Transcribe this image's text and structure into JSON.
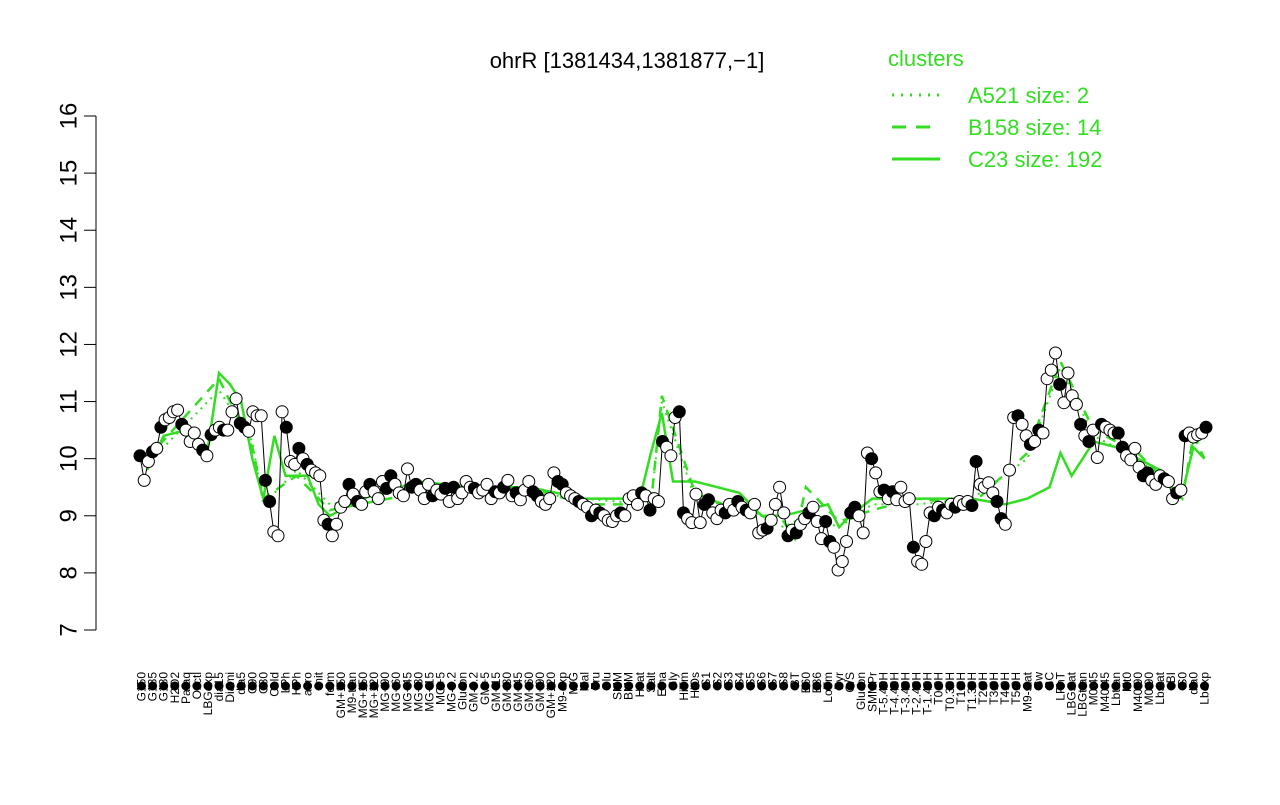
{
  "chart_data": {
    "type": "line",
    "title": "ohrR [1381434,1381877,−1]",
    "xlabel": "",
    "ylabel": "",
    "ylim": [
      7,
      16
    ],
    "yticks": [
      7,
      8,
      9,
      10,
      11,
      12,
      13,
      14,
      15,
      16
    ],
    "grid": false,
    "legend": {
      "title": "clusters",
      "position": "top-right",
      "entries": [
        {
          "label": "A521 size: 2",
          "style": "dotted"
        },
        {
          "label": "B158 size: 14",
          "style": "dashed"
        },
        {
          "label": "C23 size: 192",
          "style": "solid"
        }
      ]
    },
    "colors": {
      "cluster": "#33dd22",
      "points": "#000000",
      "axis": "#000000"
    },
    "x_labels": [
      "G150",
      "G135",
      "G180",
      "H2O2",
      "Paraq",
      "Oxctl",
      "LBGexp",
      "dia15",
      "Diami",
      "dia5",
      "C90",
      "C30",
      "Cold",
      "LPh",
      "HPh",
      "aero",
      "nit",
      "ferm",
      "GM+150",
      "M9-tran",
      "MG+150",
      "MG+120",
      "MG+90",
      "MG+60",
      "MG+45",
      "MG+30",
      "MG+15",
      "MG+5",
      "MG-0.2",
      "Glucon",
      "GM-0.2",
      "GM+5",
      "GM+15",
      "GM+30",
      "GM+45",
      "GM+60",
      "GM+90",
      "GM+120",
      "M9-exp",
      "M/G",
      "Mal",
      "Fru",
      "Glu",
      "SMM",
      "BMM",
      "Heat",
      "Salt",
      "Etha",
      "Gly",
      "HiTm",
      "HiOs",
      "S1",
      "S2",
      "S3",
      "S4",
      "S5",
      "S6",
      "S7",
      "S8",
      "BT",
      "B60",
      "B36",
      "LoTm",
      "Pyr",
      "G/S",
      "Glucon",
      "SMMPr",
      "T-5.40H",
      "T-4.40H",
      "T-3.40H",
      "T-2.40H",
      "T-1.40H",
      "T0.0H",
      "T0.30H",
      "T1.0H",
      "T1.30H",
      "T2.0H",
      "T3.0H",
      "T4.0H",
      "T5.0H",
      "M9-stat",
      "Sw",
      "BC",
      "LPhT",
      "LBGstat",
      "LBGtran",
      "M0t45",
      "M40t45",
      "Lbtran",
      "Mt0",
      "M40t90",
      "M0t90",
      "Lbstat",
      "BI",
      "S0",
      "dia0",
      "Lbexp"
    ],
    "cluster_lines": {
      "A521": [
        {
          "x": 0.5,
          "y": 9.9
        },
        {
          "x": 7,
          "y": 11.2
        },
        {
          "x": 10,
          "y": 10.3
        },
        {
          "x": 11,
          "y": 9.2
        },
        {
          "x": 14,
          "y": 9.8
        },
        {
          "x": 17,
          "y": 9.2
        },
        {
          "x": 25,
          "y": 9.5
        },
        {
          "x": 30,
          "y": 9.4
        },
        {
          "x": 35,
          "y": 9.4
        },
        {
          "x": 40,
          "y": 9.3
        },
        {
          "x": 46,
          "y": 9.2
        },
        {
          "x": 47,
          "y": 11.0
        },
        {
          "x": 50,
          "y": 9.3
        },
        {
          "x": 55,
          "y": 9.1
        },
        {
          "x": 58,
          "y": 8.8
        },
        {
          "x": 60,
          "y": 9.0
        },
        {
          "x": 63,
          "y": 8.8
        },
        {
          "x": 66,
          "y": 9.2
        },
        {
          "x": 70,
          "y": 9.2
        },
        {
          "x": 75,
          "y": 9.3
        },
        {
          "x": 80,
          "y": 10.0
        },
        {
          "x": 83,
          "y": 11.6
        },
        {
          "x": 86,
          "y": 10.4
        },
        {
          "x": 90,
          "y": 10.0
        },
        {
          "x": 93,
          "y": 9.5
        },
        {
          "x": 94,
          "y": 9.3
        },
        {
          "x": 95,
          "y": 10.3
        },
        {
          "x": 96,
          "y": 10.3
        }
      ],
      "B158": [
        {
          "x": 0.5,
          "y": 10.0
        },
        {
          "x": 7,
          "y": 11.4
        },
        {
          "x": 10,
          "y": 10.2
        },
        {
          "x": 11,
          "y": 9.3
        },
        {
          "x": 14,
          "y": 9.7
        },
        {
          "x": 17,
          "y": 9.1
        },
        {
          "x": 25,
          "y": 9.4
        },
        {
          "x": 30,
          "y": 9.5
        },
        {
          "x": 35,
          "y": 9.5
        },
        {
          "x": 40,
          "y": 9.2
        },
        {
          "x": 46,
          "y": 9.2
        },
        {
          "x": 47,
          "y": 11.1
        },
        {
          "x": 50,
          "y": 9.4
        },
        {
          "x": 55,
          "y": 9.0
        },
        {
          "x": 58,
          "y": 8.9
        },
        {
          "x": 59,
          "y": 8.6
        },
        {
          "x": 60,
          "y": 9.5
        },
        {
          "x": 63,
          "y": 8.9
        },
        {
          "x": 66,
          "y": 9.1
        },
        {
          "x": 70,
          "y": 9.3
        },
        {
          "x": 75,
          "y": 9.2
        },
        {
          "x": 80,
          "y": 10.1
        },
        {
          "x": 83,
          "y": 11.7
        },
        {
          "x": 86,
          "y": 10.5
        },
        {
          "x": 90,
          "y": 10.1
        },
        {
          "x": 93,
          "y": 9.5
        },
        {
          "x": 94,
          "y": 9.3
        },
        {
          "x": 95,
          "y": 10.4
        },
        {
          "x": 96,
          "y": 10.0
        }
      ],
      "C23": [
        {
          "x": 0.5,
          "y": 9.8
        },
        {
          "x": 2,
          "y": 10.4
        },
        {
          "x": 4,
          "y": 10.5
        },
        {
          "x": 6,
          "y": 10.2
        },
        {
          "x": 7,
          "y": 11.5
        },
        {
          "x": 8,
          "y": 11.3
        },
        {
          "x": 9,
          "y": 11.0
        },
        {
          "x": 10,
          "y": 10.0
        },
        {
          "x": 11,
          "y": 9.3
        },
        {
          "x": 12,
          "y": 10.4
        },
        {
          "x": 13,
          "y": 9.7
        },
        {
          "x": 15,
          "y": 9.7
        },
        {
          "x": 16,
          "y": 9.2
        },
        {
          "x": 17,
          "y": 9.0
        },
        {
          "x": 20,
          "y": 9.3
        },
        {
          "x": 25,
          "y": 9.6
        },
        {
          "x": 30,
          "y": 9.5
        },
        {
          "x": 35,
          "y": 9.5
        },
        {
          "x": 40,
          "y": 9.3
        },
        {
          "x": 45,
          "y": 9.3
        },
        {
          "x": 46,
          "y": 10.1
        },
        {
          "x": 47,
          "y": 10.8
        },
        {
          "x": 48,
          "y": 9.6
        },
        {
          "x": 50,
          "y": 9.6
        },
        {
          "x": 52,
          "y": 9.5
        },
        {
          "x": 54,
          "y": 9.4
        },
        {
          "x": 56,
          "y": 9.0
        },
        {
          "x": 58,
          "y": 9.0
        },
        {
          "x": 60,
          "y": 9.1
        },
        {
          "x": 62,
          "y": 9.2
        },
        {
          "x": 63,
          "y": 8.8
        },
        {
          "x": 64,
          "y": 9.0
        },
        {
          "x": 66,
          "y": 9.3
        },
        {
          "x": 70,
          "y": 9.3
        },
        {
          "x": 75,
          "y": 9.3
        },
        {
          "x": 78,
          "y": 9.2
        },
        {
          "x": 80,
          "y": 9.3
        },
        {
          "x": 82,
          "y": 9.5
        },
        {
          "x": 83,
          "y": 10.1
        },
        {
          "x": 84,
          "y": 9.7
        },
        {
          "x": 86,
          "y": 10.3
        },
        {
          "x": 88,
          "y": 10.2
        },
        {
          "x": 90,
          "y": 10.0
        },
        {
          "x": 92,
          "y": 9.8
        },
        {
          "x": 93,
          "y": 9.5
        },
        {
          "x": 94,
          "y": 9.4
        },
        {
          "x": 95,
          "y": 10.2
        },
        {
          "x": 96,
          "y": 10.0
        }
      ]
    },
    "series": [
      {
        "values": [
          10.05,
          9.62,
          9.95,
          10.12,
          10.18,
          10.55,
          10.68,
          10.72,
          10.82,
          10.85,
          10.6,
          10.5,
          10.3,
          10.45,
          10.25,
          10.15,
          10.05,
          10.42,
          10.5,
          10.55,
          10.5,
          10.5,
          10.82,
          11.05,
          10.62,
          10.55,
          10.48,
          10.82,
          10.75,
          10.75,
          9.62,
          9.25,
          8.72,
          8.65,
          10.82,
          10.55,
          9.95,
          9.9,
          10.18,
          10.0,
          9.9,
          9.8,
          9.75,
          9.7,
          8.92,
          8.85,
          8.65,
          8.85,
          9.15,
          9.25,
          9.55,
          9.38,
          9.25,
          9.2,
          9.42,
          9.55,
          9.42,
          9.3,
          9.6,
          9.48,
          9.7,
          9.55,
          9.4,
          9.35,
          9.82,
          9.5,
          9.55,
          9.45,
          9.3,
          9.55,
          9.35,
          9.45,
          9.38,
          9.48,
          9.25,
          9.5,
          9.3,
          9.4,
          9.6,
          9.5,
          9.48,
          9.4,
          9.45,
          9.55,
          9.3,
          9.42,
          9.4,
          9.5,
          9.62,
          9.35,
          9.4,
          9.28,
          9.45,
          9.6,
          9.42,
          9.35,
          9.25,
          9.2,
          9.3,
          9.75,
          9.6,
          9.55,
          9.4,
          9.35,
          9.3,
          9.25,
          9.2,
          9.15,
          9.0,
          9.1,
          9.05,
          9.0,
          8.92,
          8.9,
          9.0,
          9.05,
          9.0,
          9.3,
          9.35,
          9.2,
          9.4,
          9.35,
          9.1,
          9.3,
          9.25,
          10.3,
          10.2,
          10.05,
          10.72,
          10.82,
          9.05,
          8.95,
          8.88,
          9.38,
          8.88,
          9.2,
          9.28,
          9.05,
          8.95,
          9.1,
          9.05,
          9.2,
          9.1,
          9.25,
          9.15,
          9.1,
          9.05,
          9.2,
          8.7,
          8.75,
          8.78,
          8.92,
          9.2,
          9.5,
          9.05,
          8.65,
          8.75,
          8.7,
          8.85,
          8.95,
          9.05,
          9.15,
          8.9,
          8.6,
          8.9,
          8.55,
          8.45,
          8.05,
          8.2,
          8.55,
          9.05,
          9.15,
          9.0,
          8.7,
          10.1,
          10.0,
          9.75,
          9.42,
          9.45,
          9.3,
          9.42,
          9.28,
          9.5,
          9.25,
          9.3,
          8.45,
          8.2,
          8.15,
          8.55,
          9.05,
          9.0,
          9.15,
          9.1,
          9.05,
          9.2,
          9.15,
          9.25,
          9.2,
          9.25,
          9.18,
          9.95,
          9.55,
          9.5,
          9.58,
          9.4,
          9.25,
          8.95,
          8.85,
          9.8,
          10.72,
          10.75,
          10.6,
          10.4,
          10.25,
          10.3,
          10.5,
          10.45,
          11.4,
          11.55,
          11.85,
          11.3,
          10.98,
          11.5,
          11.1,
          10.95,
          10.6,
          10.4,
          10.3,
          10.5,
          10.02,
          10.6,
          10.55,
          10.5,
          10.45,
          10.45,
          10.2,
          10.05,
          9.98,
          10.18,
          9.85,
          9.7,
          9.75,
          9.62,
          9.55,
          9.7,
          9.65,
          9.6,
          9.3,
          9.4,
          9.45,
          10.4,
          10.45,
          10.38,
          10.42,
          10.45,
          10.55
        ]
      }
    ]
  }
}
